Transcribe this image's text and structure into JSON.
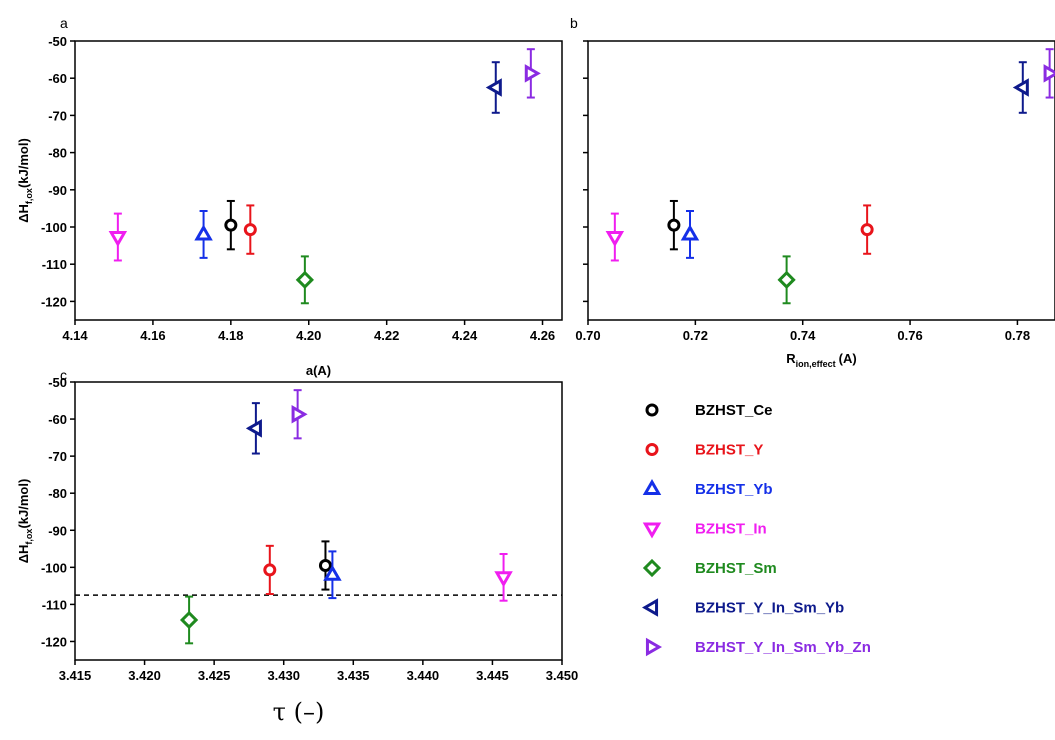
{
  "colors": {
    "BZHST_Ce": "#000000",
    "BZHST_Y": "#e8141b",
    "BZHST_Yb": "#1530e8",
    "BZHST_In": "#f01ef0",
    "BZHST_Sm": "#1f8a1f",
    "BZHST_Y_In_Sm_Yb": "#0e1a8c",
    "BZHST_Y_In_Sm_Yb_Zn": "#8a2be2"
  },
  "legend": [
    {
      "name": "BZHST_Ce",
      "marker": "circle"
    },
    {
      "name": "BZHST_Y",
      "marker": "circle"
    },
    {
      "name": "BZHST_Yb",
      "marker": "triangle-up"
    },
    {
      "name": "BZHST_In",
      "marker": "triangle-down"
    },
    {
      "name": "BZHST_Sm",
      "marker": "diamond"
    },
    {
      "name": "BZHST_Y_In_Sm_Yb",
      "marker": "triangle-left"
    },
    {
      "name": "BZHST_Y_In_Sm_Yb_Zn",
      "marker": "triangle-right"
    }
  ],
  "chart_data": [
    {
      "panel": "a",
      "type": "scatter",
      "xlabel": "a(A)",
      "ylabel_main": "ΔH",
      "ylabel_sub": "f,ox",
      "ylabel_unit": "(kJ/mol)",
      "xlim": [
        4.14,
        4.265
      ],
      "ylim": [
        -125,
        -50
      ],
      "xticks": [
        "4.14",
        "4.16",
        "4.18",
        "4.20",
        "4.22",
        "4.24",
        "4.26"
      ],
      "yticks": [
        "-50",
        "-60",
        "-70",
        "-80",
        "-90",
        "-100",
        "-110",
        "-120"
      ],
      "series": [
        {
          "name": "BZHST_Ce",
          "x": 4.18,
          "y": -99.5,
          "err": 6.5
        },
        {
          "name": "BZHST_Y",
          "x": 4.185,
          "y": -100.7,
          "err": 6.5
        },
        {
          "name": "BZHST_Yb",
          "x": 4.173,
          "y": -102.0,
          "err": 6.3
        },
        {
          "name": "BZHST_In",
          "x": 4.151,
          "y": -102.7,
          "err": 6.3
        },
        {
          "name": "BZHST_Sm",
          "x": 4.199,
          "y": -114.2,
          "err": 6.3
        },
        {
          "name": "BZHST_Y_In_Sm_Yb",
          "x": 4.248,
          "y": -62.5,
          "err": 6.8
        },
        {
          "name": "BZHST_Y_In_Sm_Yb_Zn",
          "x": 4.257,
          "y": -58.7,
          "err": 6.5
        }
      ]
    },
    {
      "panel": "b",
      "type": "scatter",
      "xlabel_main": "R",
      "xlabel_sub": "ion,effect",
      "xlabel_unit": "(A)",
      "xlim": [
        0.7,
        0.787
      ],
      "ylim": [
        -125,
        -50
      ],
      "xticks": [
        "0.70",
        "0.72",
        "0.74",
        "0.76",
        "0.78"
      ],
      "series": [
        {
          "name": "BZHST_Ce",
          "x": 0.716,
          "y": -99.5,
          "err": 6.5
        },
        {
          "name": "BZHST_Y",
          "x": 0.752,
          "y": -100.7,
          "err": 6.5
        },
        {
          "name": "BZHST_Yb",
          "x": 0.719,
          "y": -102.0,
          "err": 6.3
        },
        {
          "name": "BZHST_In",
          "x": 0.705,
          "y": -102.7,
          "err": 6.3
        },
        {
          "name": "BZHST_Sm",
          "x": 0.737,
          "y": -114.2,
          "err": 6.3
        },
        {
          "name": "BZHST_Y_In_Sm_Yb",
          "x": 0.781,
          "y": -62.5,
          "err": 6.8
        },
        {
          "name": "BZHST_Y_In_Sm_Yb_Zn",
          "x": 0.786,
          "y": -58.7,
          "err": 6.5
        }
      ]
    },
    {
      "panel": "c",
      "type": "scatter",
      "xlabel": "τ (–)",
      "ylabel_main": "ΔH",
      "ylabel_sub": "f,ox",
      "ylabel_unit": "(kJ/mol)",
      "xlim": [
        3.415,
        3.45
      ],
      "ylim": [
        -125,
        -50
      ],
      "xticks": [
        "3.415",
        "3.420",
        "3.425",
        "3.430",
        "3.435",
        "3.440",
        "3.445",
        "3.450"
      ],
      "yticks": [
        "-50",
        "-60",
        "-70",
        "-80",
        "-90",
        "-100",
        "-110",
        "-120"
      ],
      "reference_line_y": -107.5,
      "series": [
        {
          "name": "BZHST_Ce",
          "x": 3.433,
          "y": -99.5,
          "err": 6.5
        },
        {
          "name": "BZHST_Y",
          "x": 3.429,
          "y": -100.7,
          "err": 6.5
        },
        {
          "name": "BZHST_Yb",
          "x": 3.4335,
          "y": -102.0,
          "err": 6.3
        },
        {
          "name": "BZHST_In",
          "x": 3.4458,
          "y": -102.7,
          "err": 6.3
        },
        {
          "name": "BZHST_Sm",
          "x": 3.4232,
          "y": -114.2,
          "err": 6.3
        },
        {
          "name": "BZHST_Y_In_Sm_Yb",
          "x": 3.428,
          "y": -62.5,
          "err": 6.8
        },
        {
          "name": "BZHST_Y_In_Sm_Yb_Zn",
          "x": 3.431,
          "y": -58.7,
          "err": 6.5
        }
      ]
    }
  ]
}
